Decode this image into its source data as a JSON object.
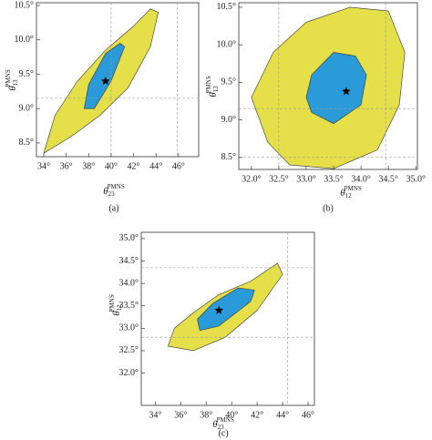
{
  "chart_data": [
    {
      "type": "contour",
      "panel_label": "(a)",
      "xlabel": {
        "base": "θ",
        "sub": "23",
        "sup": "PMNS"
      },
      "ylabel": {
        "base": "θ",
        "sub": "13",
        "sup": "PMNS"
      },
      "xlim": [
        33.35,
        47.8
      ],
      "ylim": [
        8.3,
        10.54
      ],
      "xticks": [
        {
          "value": 34,
          "label": "34°"
        },
        {
          "value": 36,
          "label": "36°"
        },
        {
          "value": 38,
          "label": "38°"
        },
        {
          "value": 40,
          "label": "40°"
        },
        {
          "value": 42,
          "label": "42°"
        },
        {
          "value": 44,
          "label": "44°"
        },
        {
          "value": 46,
          "label": "46°"
        }
      ],
      "yticks": [
        {
          "value": 8.5,
          "label": "8.5°"
        },
        {
          "value": 9.0,
          "label": "9.0°"
        },
        {
          "value": 9.5,
          "label": "9.5°"
        },
        {
          "value": 10.0,
          "label": "10.0°"
        },
        {
          "value": 10.5,
          "label": "10.5°"
        }
      ],
      "series": [
        {
          "color": "#e5df4a",
          "x": [
            34.0,
            36.5,
            39,
            41.5,
            43.5,
            44.2,
            43.5,
            42,
            39.5,
            37,
            35
          ],
          "y": [
            8.35,
            8.6,
            8.9,
            9.3,
            9.9,
            10.4,
            10.45,
            10.2,
            9.85,
            9.4,
            8.9
          ]
        },
        {
          "color": "#2a9ad8",
          "x": [
            37.6,
            38.5,
            40,
            41.2,
            40.8,
            39.5,
            38
          ],
          "y": [
            9.0,
            9.0,
            9.4,
            9.9,
            9.95,
            9.8,
            9.35
          ]
        }
      ],
      "best_fit": {
        "x": 39.5,
        "y": 9.4
      },
      "vlines": [
        40.0,
        45.9
      ],
      "hlines": [
        9.15
      ]
    },
    {
      "type": "contour",
      "panel_label": "(b)",
      "xlabel": {
        "base": "θ",
        "sub": "12",
        "sup": "PMNS"
      },
      "ylabel": {
        "base": "θ",
        "sub": "13",
        "sup": "PMNS"
      },
      "xlim": [
        31.77,
        35.03
      ],
      "ylim": [
        8.34,
        10.56
      ],
      "xticks": [
        {
          "value": 32.0,
          "label": "32.0°"
        },
        {
          "value": 32.5,
          "label": "32.5°"
        },
        {
          "value": 33.0,
          "label": "33.0°"
        },
        {
          "value": 33.5,
          "label": "33.5°"
        },
        {
          "value": 34.0,
          "label": "34.0°"
        },
        {
          "value": 34.5,
          "label": "34.5°"
        },
        {
          "value": 35.0,
          "label": "35.0°"
        }
      ],
      "yticks": [
        {
          "value": 8.5,
          "label": "8.5°"
        },
        {
          "value": 9.0,
          "label": "9.0°"
        },
        {
          "value": 9.5,
          "label": "9.5°"
        },
        {
          "value": 10.0,
          "label": "10.0°"
        },
        {
          "value": 10.5,
          "label": "10.5°"
        }
      ],
      "series": [
        {
          "color": "#e5df4a",
          "x": [
            32.3,
            32.7,
            33.5,
            34.3,
            34.7,
            34.8,
            34.5,
            33.8,
            33.0,
            32.4,
            32.0
          ],
          "y": [
            8.7,
            8.4,
            8.35,
            8.6,
            9.2,
            9.9,
            10.45,
            10.5,
            10.3,
            9.9,
            9.3
          ]
        },
        {
          "color": "#2a9ad8",
          "x": [
            33.1,
            33.5,
            34.0,
            34.1,
            33.9,
            33.5,
            33.1,
            33.0
          ],
          "y": [
            9.1,
            8.95,
            9.2,
            9.6,
            9.85,
            9.9,
            9.6,
            9.3
          ]
        }
      ],
      "best_fit": {
        "x": 33.73,
        "y": 9.38
      },
      "vlines": [
        32.5,
        34.45
      ],
      "hlines": [
        9.15,
        8.5
      ]
    },
    {
      "type": "contour",
      "panel_label": "(c)",
      "xlabel": {
        "base": "θ",
        "sub": "23",
        "sup": "PMNS"
      },
      "ylabel": {
        "base": "θ",
        "sub": "12",
        "sup": "PMNS"
      },
      "xlim": [
        32.9,
        46.5
      ],
      "ylim": [
        31.28,
        35.14
      ],
      "xticks": [
        {
          "value": 34,
          "label": "34°"
        },
        {
          "value": 36,
          "label": "36°"
        },
        {
          "value": 38,
          "label": "38°"
        },
        {
          "value": 40,
          "label": "40°"
        },
        {
          "value": 42,
          "label": "42°"
        },
        {
          "value": 44,
          "label": "44°"
        },
        {
          "value": 46,
          "label": "46°"
        }
      ],
      "yticks": [
        {
          "value": 32.0,
          "label": "32.0°"
        },
        {
          "value": 32.5,
          "label": "32.5°"
        },
        {
          "value": 33.0,
          "label": "33.0°"
        },
        {
          "value": 33.5,
          "label": "33.5°"
        },
        {
          "value": 34.0,
          "label": "34.0°"
        },
        {
          "value": 34.5,
          "label": "34.5°"
        },
        {
          "value": 35.0,
          "label": "35.0°"
        }
      ],
      "series": [
        {
          "color": "#e5df4a",
          "x": [
            35.0,
            37,
            39.5,
            42,
            44,
            43.6,
            41.5,
            39,
            37,
            35.5
          ],
          "y": [
            32.6,
            32.5,
            32.8,
            33.4,
            34.2,
            34.45,
            34.05,
            33.75,
            33.35,
            33.0
          ]
        },
        {
          "color": "#2a9ad8",
          "x": [
            37.5,
            39,
            41.5,
            41.8,
            40.5,
            38.5,
            37.3
          ],
          "y": [
            32.95,
            33.05,
            33.6,
            33.85,
            33.9,
            33.55,
            33.2
          ]
        }
      ],
      "best_fit": {
        "x": 39.0,
        "y": 33.4
      },
      "vlines": [
        44.4
      ],
      "hlines": [
        34.35,
        32.8
      ]
    }
  ]
}
